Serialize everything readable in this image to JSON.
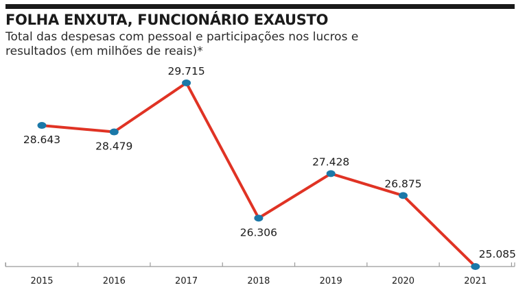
{
  "header": {
    "title": "FOLHA ENXUTA, FUNCIONÁRIO EXAUSTO",
    "subtitle": "Total das despesas com pessoal e participações nos lucros e resultados (em milhões de reais)*"
  },
  "colors": {
    "line": "#e03324",
    "marker": "#1b78a8",
    "axis": "#9a9a9a",
    "rule": "#1a1a1a"
  },
  "chart_data": {
    "type": "line",
    "title": "FOLHA ENXUTA, FUNCIONÁRIO EXAUSTO",
    "subtitle": "Total das despesas com pessoal e participações nos lucros e resultados (em milhões de reais)*",
    "categories": [
      "2015",
      "2016",
      "2017",
      "2018",
      "2019",
      "2020",
      "2021"
    ],
    "values": [
      28643,
      28479,
      29715,
      26306,
      27428,
      26875,
      25085
    ],
    "value_labels": [
      "28.643",
      "28.479",
      "29.715",
      "26.306",
      "27.428",
      "26.875",
      "25.085"
    ],
    "xlabel": "",
    "ylabel": "",
    "ylim": [
      25085,
      29715
    ],
    "grid": false,
    "legend": "none",
    "label_positions": [
      "below",
      "below",
      "above",
      "below",
      "above",
      "above",
      "above"
    ]
  }
}
